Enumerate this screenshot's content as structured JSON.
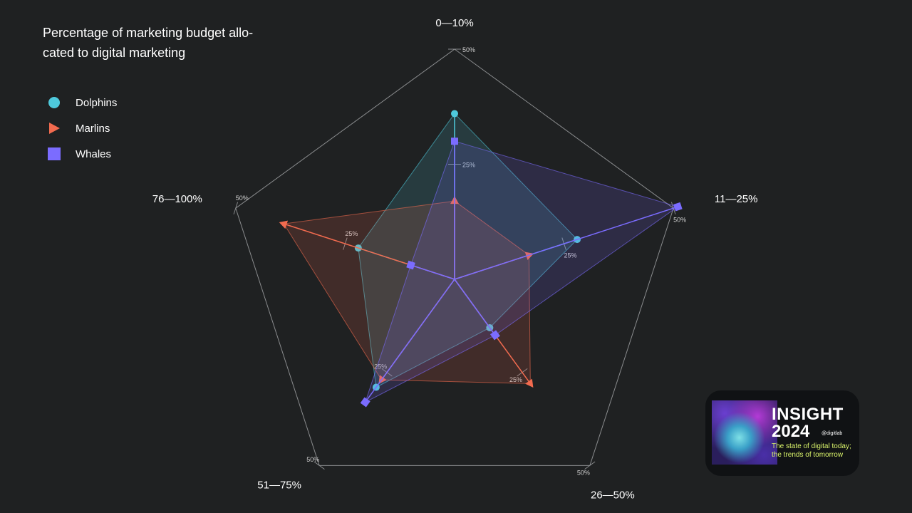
{
  "title": "Percentage of marketing budget allo-\ncated to digital marketing",
  "legend": [
    {
      "name": "Dolphins",
      "icon": "circle",
      "color": "#4ec9dc"
    },
    {
      "name": "Marlins",
      "icon": "triangle",
      "color": "#f26b4f"
    },
    {
      "name": "Whales",
      "icon": "square",
      "color": "#7b6cff"
    }
  ],
  "badge": {
    "title": "INSIGHT",
    "year": "2024",
    "handle": "@digitlab",
    "tagline": "The state of digital today; the trends of tomorrow"
  },
  "chart_data": {
    "type": "radar",
    "title": "Percentage of marketing budget allocated to digital marketing",
    "axes": [
      "0—10%",
      "11—25%",
      "26—50%",
      "51—75%",
      "76—100%"
    ],
    "tick_labels": [
      "25%",
      "50%"
    ],
    "max": 50,
    "series": [
      {
        "name": "Dolphins",
        "marker": "circle",
        "color": "#4ec9dc",
        "values": [
          36,
          28,
          13,
          29,
          22
        ]
      },
      {
        "name": "Marlins",
        "marker": "triangle",
        "color": "#f26b4f",
        "values": [
          17,
          17,
          28,
          27,
          39
        ]
      },
      {
        "name": "Whales",
        "marker": "square",
        "color": "#7b6cff",
        "values": [
          30,
          51,
          15,
          33,
          10
        ]
      }
    ]
  }
}
